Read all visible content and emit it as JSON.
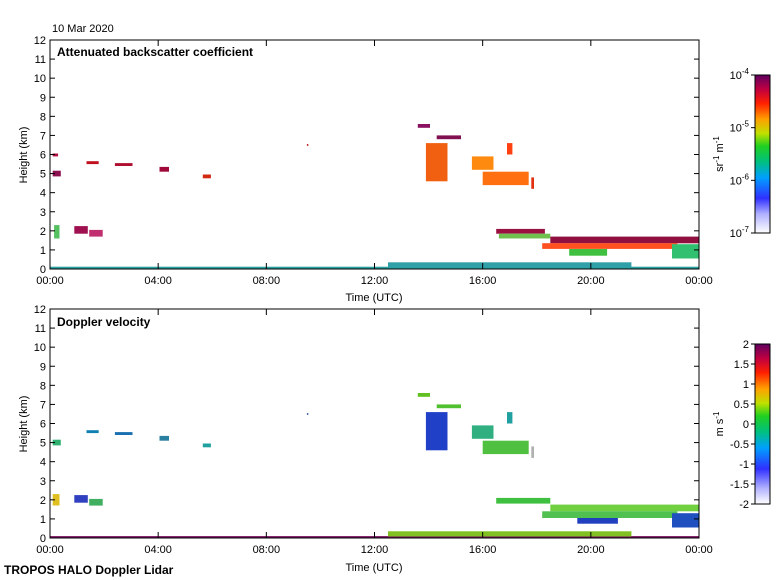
{
  "date_label": "10 Mar 2020",
  "footer_label": "TROPOS HALO Doppler Lidar",
  "chart_data": [
    {
      "type": "heatmap",
      "title": "Attenuated backscatter coefficient",
      "xlabel": "Time (UTC)",
      "ylabel": "Height (km)",
      "x_ticks": [
        "00:00",
        "04:00",
        "08:00",
        "12:00",
        "16:00",
        "20:00",
        "00:00"
      ],
      "x_range_hours": [
        0,
        24
      ],
      "y_ticks": [
        "0",
        "1",
        "2",
        "3",
        "4",
        "5",
        "6",
        "7",
        "8",
        "9",
        "10",
        "11",
        "12"
      ],
      "ylim": [
        0,
        12
      ],
      "colorbar": {
        "scale": "log",
        "range": [
          1e-07,
          0.0001
        ],
        "tick_base": "10",
        "tick_exps": [
          "-4",
          "-5",
          "-6",
          "-7"
        ],
        "unit_sr": "sr",
        "unit_sr_exp": "-1",
        "unit_m": "m",
        "unit_m_exp": "-1"
      },
      "features": [
        {
          "t0": 0.1,
          "t1": 0.4,
          "z0": 4.85,
          "z1": 5.15,
          "color": "#8a1050"
        },
        {
          "t0": 0.1,
          "t1": 0.3,
          "z0": 5.9,
          "z1": 6.05,
          "color": "#b01040"
        },
        {
          "t0": 0.15,
          "t1": 0.35,
          "z0": 1.6,
          "z1": 2.3,
          "color": "#55c060"
        },
        {
          "t0": 0.9,
          "t1": 1.4,
          "z0": 1.85,
          "z1": 2.25,
          "color": "#a01050"
        },
        {
          "t0": 1.45,
          "t1": 1.95,
          "z0": 1.7,
          "z1": 2.05,
          "color": "#c03070"
        },
        {
          "t0": 1.35,
          "t1": 1.8,
          "z0": 5.5,
          "z1": 5.65,
          "color": "#c01020"
        },
        {
          "t0": 2.4,
          "t1": 3.05,
          "z0": 5.4,
          "z1": 5.55,
          "color": "#b01030"
        },
        {
          "t0": 4.05,
          "t1": 4.4,
          "z0": 5.1,
          "z1": 5.35,
          "color": "#a00a3a"
        },
        {
          "t0": 5.65,
          "t1": 5.95,
          "z0": 4.75,
          "z1": 4.95,
          "color": "#d02a10"
        },
        {
          "t0": 9.5,
          "t1": 9.55,
          "z0": 6.45,
          "z1": 6.55,
          "color": "#c02020"
        },
        {
          "t0": 13.6,
          "t1": 14.05,
          "z0": 7.4,
          "z1": 7.6,
          "color": "#8a1060"
        },
        {
          "t0": 14.3,
          "t1": 15.2,
          "z0": 6.8,
          "z1": 7.0,
          "color": "#801050"
        },
        {
          "t0": 13.9,
          "t1": 14.7,
          "z0": 4.6,
          "z1": 6.6,
          "color": "#f06010"
        },
        {
          "t0": 15.6,
          "t1": 16.4,
          "z0": 5.2,
          "z1": 5.9,
          "color": "#ff8a10"
        },
        {
          "t0": 16.0,
          "t1": 17.7,
          "z0": 4.4,
          "z1": 5.1,
          "color": "#ff7010"
        },
        {
          "t0": 16.9,
          "t1": 17.1,
          "z0": 6.0,
          "z1": 6.6,
          "color": "#ff4010"
        },
        {
          "t0": 17.8,
          "t1": 17.9,
          "z0": 4.2,
          "z1": 4.8,
          "color": "#e03010"
        },
        {
          "t0": 16.5,
          "t1": 18.3,
          "z0": 1.85,
          "z1": 2.1,
          "color": "#9a1040"
        },
        {
          "t0": 16.6,
          "t1": 18.5,
          "z0": 1.6,
          "z1": 1.85,
          "color": "#70c050"
        },
        {
          "t0": 18.5,
          "t1": 24.0,
          "z0": 1.35,
          "z1": 1.7,
          "color": "#901040"
        },
        {
          "t0": 18.2,
          "t1": 23.2,
          "z0": 1.05,
          "z1": 1.35,
          "color": "#ff5020"
        },
        {
          "t0": 19.2,
          "t1": 20.6,
          "z0": 0.7,
          "z1": 1.05,
          "color": "#40c040"
        },
        {
          "t0": 23.0,
          "t1": 24.0,
          "z0": 0.55,
          "z1": 1.3,
          "color": "#30c070"
        },
        {
          "t0": 0.0,
          "t1": 24.0,
          "z0": 0.0,
          "z1": 0.12,
          "color": "#2aa0a0"
        },
        {
          "t0": 12.5,
          "t1": 21.5,
          "z0": 0.08,
          "z1": 0.35,
          "color": "#30a0a8"
        }
      ]
    },
    {
      "type": "heatmap",
      "title": "Doppler velocity",
      "xlabel": "Time (UTC)",
      "ylabel": "Height (km)",
      "x_ticks": [
        "00:00",
        "04:00",
        "08:00",
        "12:00",
        "16:00",
        "20:00",
        "00:00"
      ],
      "x_range_hours": [
        0,
        24
      ],
      "y_ticks": [
        "0",
        "1",
        "2",
        "3",
        "4",
        "5",
        "6",
        "7",
        "8",
        "9",
        "10",
        "11",
        "12"
      ],
      "ylim": [
        0,
        12
      ],
      "colorbar": {
        "scale": "linear",
        "range": [
          -2,
          2
        ],
        "ticks": [
          "2",
          "1.5",
          "1",
          "0.5",
          "0",
          "-0.5",
          "-1",
          "-1.5",
          "-2"
        ],
        "unit_m": "m",
        "unit_s": "s",
        "unit_s_exp": "-1"
      },
      "features": [
        {
          "t0": 0.1,
          "t1": 0.4,
          "z0": 4.85,
          "z1": 5.15,
          "color": "#30b070"
        },
        {
          "t0": 0.1,
          "t1": 0.35,
          "z0": 1.7,
          "z1": 2.3,
          "color": "#e0c020"
        },
        {
          "t0": 0.9,
          "t1": 1.4,
          "z0": 1.85,
          "z1": 2.25,
          "color": "#3040c0"
        },
        {
          "t0": 1.45,
          "t1": 1.95,
          "z0": 1.7,
          "z1": 2.05,
          "color": "#40b060"
        },
        {
          "t0": 1.35,
          "t1": 1.8,
          "z0": 5.5,
          "z1": 5.65,
          "color": "#1080b0"
        },
        {
          "t0": 2.4,
          "t1": 3.05,
          "z0": 5.4,
          "z1": 5.55,
          "color": "#1a70b0"
        },
        {
          "t0": 4.05,
          "t1": 4.4,
          "z0": 5.1,
          "z1": 5.35,
          "color": "#2a80a0"
        },
        {
          "t0": 5.65,
          "t1": 5.95,
          "z0": 4.75,
          "z1": 4.95,
          "color": "#20a0a0"
        },
        {
          "t0": 9.5,
          "t1": 9.55,
          "z0": 6.45,
          "z1": 6.55,
          "color": "#4060a0"
        },
        {
          "t0": 13.6,
          "t1": 14.05,
          "z0": 7.4,
          "z1": 7.6,
          "color": "#60c020"
        },
        {
          "t0": 14.3,
          "t1": 15.2,
          "z0": 6.8,
          "z1": 7.0,
          "color": "#50c030"
        },
        {
          "t0": 13.9,
          "t1": 14.7,
          "z0": 4.6,
          "z1": 6.6,
          "color": "#2040c8"
        },
        {
          "t0": 15.6,
          "t1": 16.4,
          "z0": 5.2,
          "z1": 5.9,
          "color": "#30b080"
        },
        {
          "t0": 16.0,
          "t1": 17.7,
          "z0": 4.4,
          "z1": 5.1,
          "color": "#50c040"
        },
        {
          "t0": 16.9,
          "t1": 17.1,
          "z0": 6.0,
          "z1": 6.6,
          "color": "#20a0a0"
        },
        {
          "t0": 17.8,
          "t1": 17.9,
          "z0": 4.2,
          "z1": 4.8,
          "color": "#b0b0b0"
        },
        {
          "t0": 16.5,
          "t1": 18.5,
          "z0": 1.8,
          "z1": 2.1,
          "color": "#40c040"
        },
        {
          "t0": 18.5,
          "t1": 24.0,
          "z0": 1.4,
          "z1": 1.75,
          "color": "#70d040"
        },
        {
          "t0": 18.2,
          "t1": 23.2,
          "z0": 1.05,
          "z1": 1.4,
          "color": "#50c050"
        },
        {
          "t0": 19.5,
          "t1": 21.0,
          "z0": 0.75,
          "z1": 1.05,
          "color": "#2040c0"
        },
        {
          "t0": 23.0,
          "t1": 24.0,
          "z0": 0.55,
          "z1": 1.3,
          "color": "#2050c0"
        },
        {
          "t0": 0.0,
          "t1": 24.0,
          "z0": 0.0,
          "z1": 0.1,
          "color": "#7a1060"
        },
        {
          "t0": 12.5,
          "t1": 21.5,
          "z0": 0.08,
          "z1": 0.35,
          "color": "#80c020"
        }
      ]
    }
  ]
}
